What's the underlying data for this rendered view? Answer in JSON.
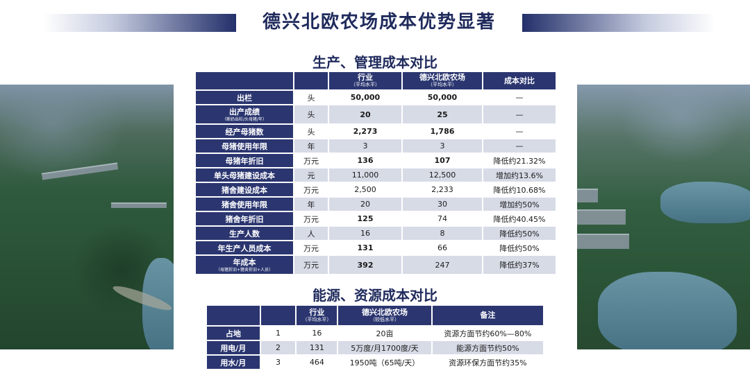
{
  "header": {
    "title": "德兴北欧农场成本优势显著"
  },
  "production": {
    "title": "生产、管理成本对比",
    "columns": [
      {
        "label": "",
        "sub": ""
      },
      {
        "label": "",
        "sub": ""
      },
      {
        "label": "行业",
        "sub": "（平均水平）"
      },
      {
        "label": "德兴北欧农场",
        "sub": "（平均水平）"
      },
      {
        "label": "成本对比",
        "sub": ""
      }
    ],
    "rows": [
      {
        "label": "出栏",
        "sub": "",
        "unit": "头",
        "industry": "50,000",
        "farm": "50,000",
        "compare": "—"
      },
      {
        "label": "出产成绩",
        "sub": "（断奶出栏/头母猪/年）",
        "unit": "头",
        "industry": "20",
        "farm": "25",
        "compare": "—"
      },
      {
        "label": "经产母猪数",
        "sub": "",
        "unit": "头",
        "industry": "2,273",
        "farm": "1,786",
        "compare": "—"
      },
      {
        "label": "母猪使用年限",
        "sub": "",
        "unit": "年",
        "industry": "3",
        "farm": "3",
        "compare": "—"
      },
      {
        "label": "母猪年折旧",
        "sub": "",
        "unit": "万元",
        "industry": "136",
        "farm": "107",
        "compare": "降低约21.32%"
      },
      {
        "label": "单头母猪建设成本",
        "sub": "",
        "unit": "元",
        "industry": "11,000",
        "farm": "12,500",
        "compare": "增加约13.6%"
      },
      {
        "label": "猪舍建设成本",
        "sub": "",
        "unit": "万元",
        "industry": "2,500",
        "farm": "2,233",
        "compare": "降低约10.68%"
      },
      {
        "label": "猪舍使用年限",
        "sub": "",
        "unit": "年",
        "industry": "20",
        "farm": "30",
        "compare": "增加约50%"
      },
      {
        "label": "猪舍年折旧",
        "sub": "",
        "unit": "万元",
        "industry": "125",
        "farm": "74",
        "compare": "降低约40.45%"
      },
      {
        "label": "生产人数",
        "sub": "",
        "unit": "人",
        "industry": "16",
        "farm": "8",
        "compare": "降低约50%"
      },
      {
        "label": "年生产人员成本",
        "sub": "",
        "unit": "万元",
        "industry": "131",
        "farm": "66",
        "compare": "降低约50%"
      },
      {
        "label": "年成本",
        "sub": "（母猪折旧+猪舍折旧+人员）",
        "unit": "万元",
        "industry": "392",
        "farm": "247",
        "compare": "降低约37%"
      }
    ]
  },
  "energy": {
    "title": "能源、资源成本对比",
    "columns": [
      {
        "label": "",
        "sub": ""
      },
      {
        "label": "",
        "sub": ""
      },
      {
        "label": "行业",
        "sub": "（平均水平）"
      },
      {
        "label": "德兴北欧农场",
        "sub": "（较低水平）"
      },
      {
        "label": "备注",
        "sub": ""
      }
    ],
    "rows": [
      {
        "label": "占地",
        "num": "1",
        "industry": "16",
        "farm": "20亩",
        "note": "资源方面节约60%—80%"
      },
      {
        "label": "用电/月",
        "num": "2",
        "industry": "131",
        "farm": "5万度/月1700度/天",
        "note": "能源方面节约50%"
      },
      {
        "label": "用水/月",
        "num": "3",
        "industry": "464",
        "farm": "1950吨（65吨/天）",
        "note": "资源环保方面节约35%"
      }
    ]
  }
}
